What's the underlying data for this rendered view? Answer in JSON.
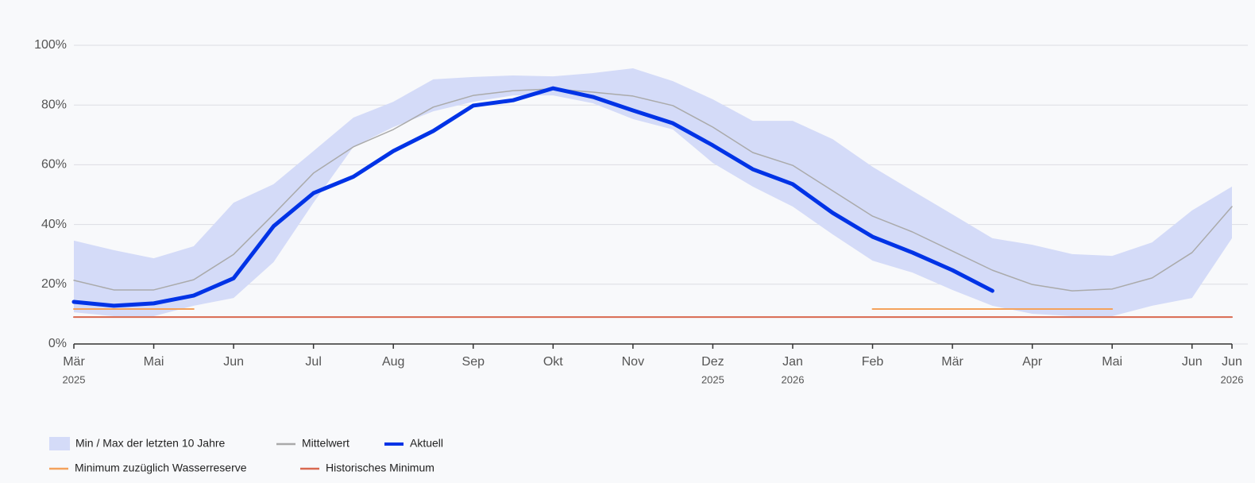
{
  "chart_data": {
    "type": "line",
    "categories": [
      "Mär",
      null,
      "Mai",
      null,
      "Jun",
      null,
      "Jul",
      null,
      "Aug",
      null,
      "Sep",
      null,
      "Okt",
      null,
      "Nov",
      null,
      "Dez",
      null,
      "Jan",
      null,
      "Feb",
      null,
      "Mär",
      null,
      "Apr",
      null,
      "Mai",
      null,
      "Jun",
      "Jun"
    ],
    "category_years": [
      "2025",
      null,
      null,
      null,
      null,
      null,
      null,
      null,
      null,
      null,
      null,
      null,
      null,
      null,
      null,
      null,
      "2025",
      null,
      "2026",
      null,
      null,
      null,
      null,
      null,
      null,
      null,
      null,
      null,
      null,
      "2026"
    ],
    "ylim": [
      0,
      100
    ],
    "yticks": [
      {
        "value": 0,
        "label": "0%"
      },
      {
        "value": 20,
        "label": "20%"
      },
      {
        "value": 40,
        "label": "40%"
      },
      {
        "value": 60,
        "label": "60%"
      },
      {
        "value": 80,
        "label": "80%"
      },
      {
        "value": 100,
        "label": "100%"
      }
    ],
    "grid": true,
    "band": {
      "name": "Min / Max der letzten 10 Jahre",
      "color": "#d4dbf8",
      "max": [
        34.6,
        31.4,
        28.7,
        32.7,
        47.3,
        53.5,
        64.6,
        75.8,
        81.1,
        88.6,
        89.4,
        89.9,
        89.6,
        90.7,
        92.3,
        88,
        81.9,
        74.7,
        74.7,
        68.6,
        59.3,
        51.3,
        43.4,
        35.4,
        33.2,
        30.1,
        29.5,
        34,
        44.7,
        52.7
      ],
      "min": [
        10.6,
        9.3,
        9.3,
        12.8,
        15.4,
        27.4,
        47.3,
        66,
        72.6,
        77.9,
        81.1,
        83.2,
        83.2,
        80.6,
        75.3,
        71.8,
        60.6,
        52.7,
        46,
        36.7,
        27.9,
        23.9,
        18.1,
        12.8,
        10.1,
        9.3,
        9.3,
        12.8,
        15.4,
        35.4
      ]
    },
    "series": [
      {
        "name": "Mittelwert",
        "color": "#aaaaaa",
        "width": 1.5,
        "values": [
          21.3,
          18.1,
          18.1,
          21.5,
          30,
          43.4,
          57.2,
          66,
          71.8,
          79.3,
          83.2,
          84.8,
          85.4,
          84.3,
          83,
          79.8,
          72.6,
          64.1,
          59.8,
          51.3,
          42.8,
          37.5,
          31.1,
          24.7,
          19.9,
          17.8,
          18.4,
          22.1,
          30.6,
          46
        ]
      },
      {
        "name": "Aktuell",
        "color": "#0033e6",
        "width": 5,
        "values": [
          14.1,
          12.8,
          13.6,
          16.2,
          22,
          39.4,
          50.5,
          56,
          64.6,
          71.3,
          79.8,
          81.6,
          85.6,
          82.7,
          78.2,
          73.9,
          66.5,
          58.5,
          53.5,
          43.9,
          35.9,
          30.6,
          24.7,
          17.8,
          null,
          null,
          null,
          null,
          null,
          null
        ]
      },
      {
        "name": "Minimum zuzüglich Wasserreserve",
        "color": "#f4a25c",
        "width": 2,
        "values": [
          11.7,
          11.7,
          11.7,
          11.7,
          null,
          null,
          null,
          null,
          null,
          null,
          null,
          null,
          null,
          null,
          null,
          null,
          null,
          null,
          null,
          null,
          11.7,
          11.7,
          11.7,
          11.7,
          11.7,
          11.7,
          11.7,
          null,
          null,
          null
        ]
      },
      {
        "name": "Historisches Minimum",
        "color": "#d9694f",
        "width": 2,
        "values": [
          9,
          9,
          9,
          9,
          9,
          9,
          9,
          9,
          9,
          9,
          9,
          9,
          9,
          9,
          9,
          9,
          9,
          9,
          9,
          9,
          9,
          9,
          9,
          9,
          9,
          9,
          9,
          9,
          9,
          9
        ]
      }
    ]
  }
}
